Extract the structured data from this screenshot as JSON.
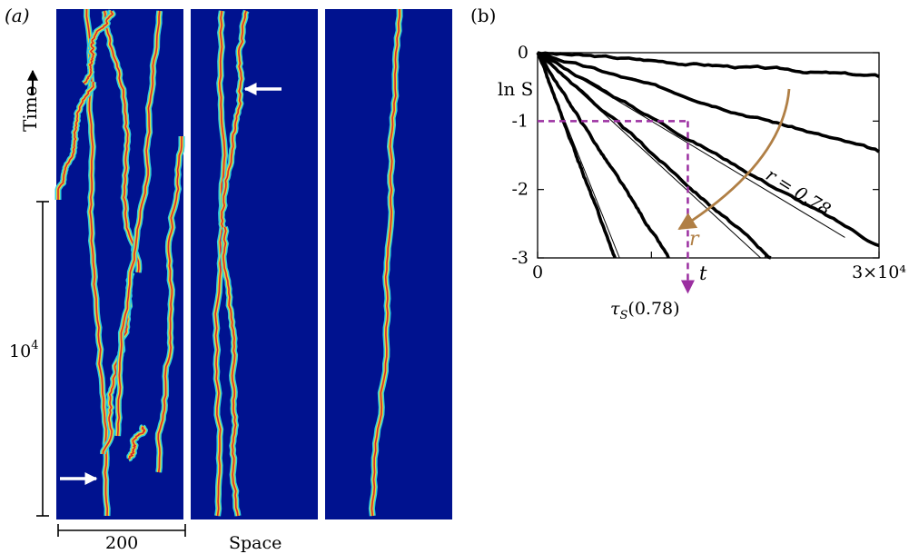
{
  "panel_a": {
    "label": "(a)",
    "time_label": "Time",
    "scale_time_label": "10",
    "scale_time_exp": "4",
    "scale_space_label": "200",
    "space_label": "Space",
    "background_color": "#00128f"
  },
  "panel_b": {
    "label": "(b)",
    "tau_label": "τ",
    "tau_sub": "S",
    "tau_arg": "(0.78)",
    "r_curve_label": "r = 0.78",
    "r_arrow_label": "r",
    "arrow_color": "#b07f45",
    "dashed_color": "#9b2fa0"
  },
  "chart_data": {
    "type": "line",
    "title": "",
    "xlabel": "t",
    "ylabel": "ln S",
    "xlim": [
      0,
      30000
    ],
    "ylim": [
      -3,
      0
    ],
    "xticks": [
      "0",
      "3×10⁴"
    ],
    "yticks": [
      "0",
      "-1",
      "-2",
      "-3"
    ],
    "grid": false,
    "annotations": [
      "r = 0.78",
      "r",
      "τS(0.78)"
    ],
    "tau_marker": {
      "t": 13200,
      "lnS": -1
    },
    "series": [
      {
        "values": [
          [
            0,
            0
          ],
          [
            30000,
            -0.35
          ]
        ]
      },
      {
        "values": [
          [
            0,
            0
          ],
          [
            30000,
            -1.45
          ]
        ]
      },
      {
        "values": [
          [
            0,
            0
          ],
          [
            30000,
            -2.82
          ]
        ]
      },
      {
        "values": [
          [
            0,
            0
          ],
          [
            20500,
            -3.0
          ]
        ]
      },
      {
        "values": [
          [
            0,
            0
          ],
          [
            11500,
            -3.0
          ]
        ]
      },
      {
        "values": [
          [
            0,
            0
          ],
          [
            6800,
            -3.0
          ]
        ]
      }
    ],
    "fit_lines": [
      {
        "values": [
          [
            0,
            0
          ],
          [
            27000,
            -2.7
          ]
        ]
      },
      {
        "values": [
          [
            0,
            0
          ],
          [
            19600,
            -3.0
          ]
        ]
      },
      {
        "values": [
          [
            0,
            0
          ],
          [
            7200,
            -3.0
          ]
        ]
      }
    ]
  }
}
